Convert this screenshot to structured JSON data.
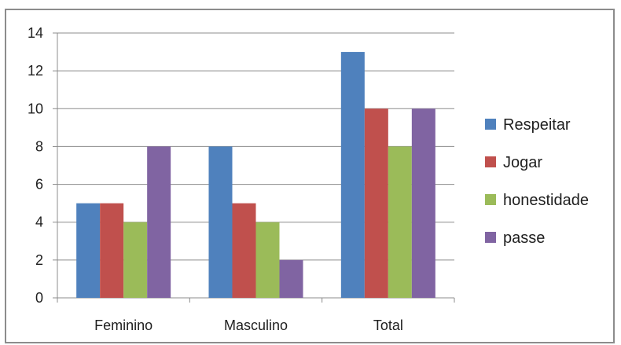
{
  "chart_data": {
    "type": "bar",
    "categories": [
      "Feminino",
      "Masculino",
      "Total"
    ],
    "series": [
      {
        "name": "Respeitar",
        "values": [
          5,
          8,
          13
        ],
        "color": "#4F81BD"
      },
      {
        "name": "Jogar",
        "values": [
          5,
          5,
          10
        ],
        "color": "#C0504D"
      },
      {
        "name": "honestidade",
        "values": [
          4,
          4,
          8
        ],
        "color": "#9BBB59"
      },
      {
        "name": "passe",
        "values": [
          8,
          2,
          10
        ],
        "color": "#8064A2"
      }
    ],
    "ylim": [
      0,
      14
    ],
    "yticks": [
      0,
      2,
      4,
      6,
      8,
      10,
      12,
      14
    ],
    "grid": true,
    "legend_position": "right",
    "title": "",
    "xlabel": "",
    "ylabel": ""
  }
}
